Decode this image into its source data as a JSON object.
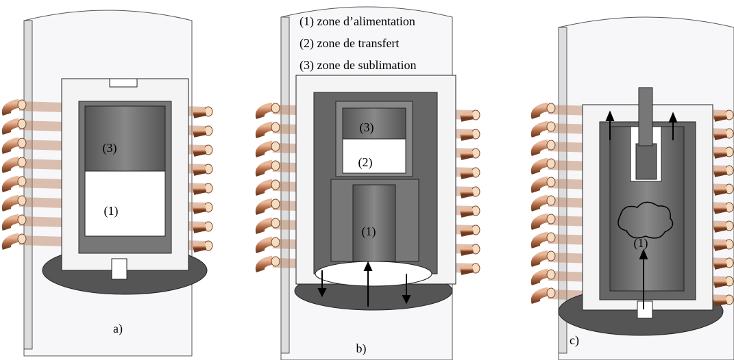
{
  "legend": [
    "(1) zone d’alimentation",
    "(2) zone de transfert",
    "(3) zone de sublimation"
  ],
  "panels": [
    {
      "label": "a)",
      "zones": [
        "(3)",
        "(1)"
      ]
    },
    {
      "label": "b)",
      "zones": [
        "(3)",
        "(2)",
        "(1)"
      ]
    },
    {
      "label": "c)",
      "zones": [
        "(1)"
      ]
    }
  ]
}
